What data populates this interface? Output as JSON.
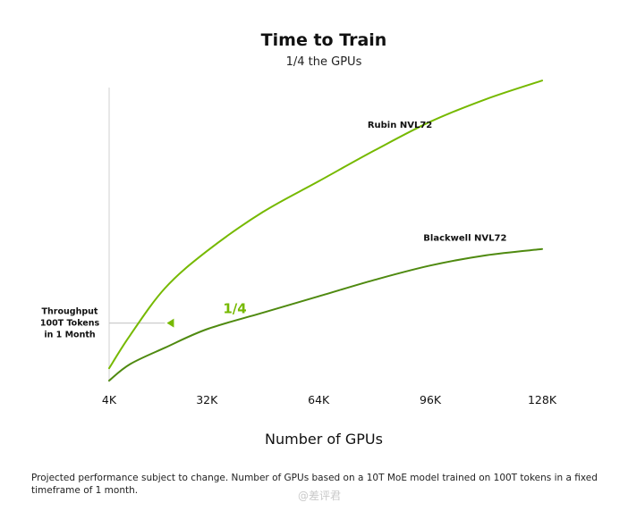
{
  "chart_data": {
    "type": "line",
    "title": "Time to Train",
    "subtitle": "1/4 the GPUs",
    "xlabel": "Number of GPUs",
    "ylabel": "",
    "x_ticks": [
      "4K",
      "32K",
      "64K",
      "96K",
      "128K"
    ],
    "x_tick_values": [
      4,
      32,
      64,
      96,
      128
    ],
    "series": [
      {
        "name": "Rubin NVL72",
        "color": "#76b900",
        "x": [
          4,
          10,
          20,
          32,
          48,
          64,
          80,
          96,
          112,
          128
        ],
        "y": [
          0.06,
          0.22,
          0.45,
          0.63,
          0.82,
          0.97,
          1.12,
          1.26,
          1.37,
          1.46
        ]
      },
      {
        "name": "Blackwell NVL72",
        "color": "#4f8a10",
        "x": [
          4,
          10,
          20,
          32,
          48,
          64,
          80,
          96,
          112,
          128
        ],
        "y": [
          0.0,
          0.08,
          0.16,
          0.25,
          0.33,
          0.41,
          0.49,
          0.56,
          0.61,
          0.64
        ]
      }
    ],
    "reference": {
      "label_lines": [
        "Throughput",
        "100T Tokens",
        "in 1 Month"
      ],
      "y": 0.28,
      "line_color": "#cccccc"
    },
    "annotation": {
      "text": "1/4",
      "color": "#76b900",
      "x_from": 64,
      "x_to": 20
    },
    "ylim": [
      0,
      1.6
    ],
    "xlim": [
      4,
      128
    ],
    "grid": false,
    "legend": "inline labels"
  },
  "footnote": "Projected performance subject to change. Number of GPUs based on a 10T MoE model trained on 100T tokens in a fixed timeframe of 1 month.",
  "watermark": "@差评君"
}
